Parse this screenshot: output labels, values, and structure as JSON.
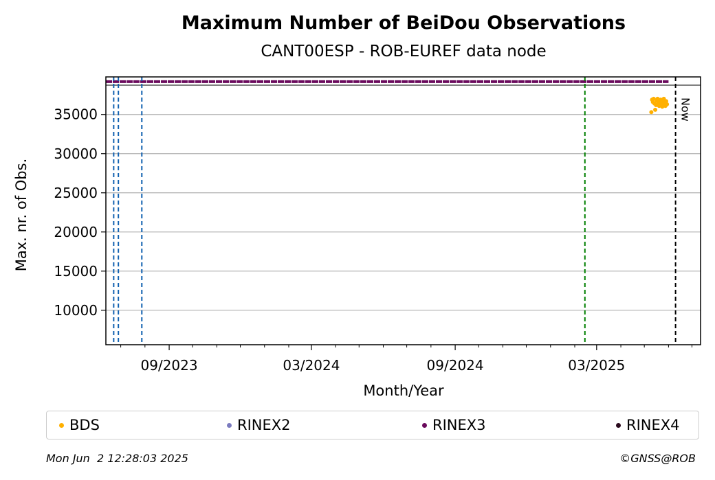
{
  "chart_data": {
    "type": "scatter",
    "title": "Maximum Number of BeiDou Observations",
    "subtitle": "CANT00ESP - ROB-EUREF data node",
    "xlabel": "Month/Year",
    "ylabel": "Max. nr. of Obs.",
    "x_range": [
      "2023-06-12",
      "2025-07-12"
    ],
    "ylim": [
      5600,
      39800
    ],
    "x_ticks": [
      {
        "date": "2023-09-01",
        "label": "09/2023"
      },
      {
        "date": "2024-03-01",
        "label": "03/2024"
      },
      {
        "date": "2024-09-01",
        "label": "09/2024"
      },
      {
        "date": "2025-03-01",
        "label": "03/2025"
      }
    ],
    "minor_ticks": [
      "2023-07-01",
      "2023-08-01",
      "2023-10-01",
      "2023-11-01",
      "2023-12-01",
      "2024-01-01",
      "2024-02-01",
      "2024-04-01",
      "2024-05-01",
      "2024-06-01",
      "2024-07-01",
      "2024-08-01",
      "2024-10-01",
      "2024-11-01",
      "2024-12-01",
      "2025-01-01",
      "2025-02-01",
      "2025-04-01",
      "2025-05-01",
      "2025-06-01",
      "2025-07-01"
    ],
    "y_ticks": [
      10000,
      15000,
      20000,
      25000,
      30000,
      35000
    ],
    "grid_y": true,
    "legend_position": "bottom",
    "series": [
      {
        "name": "BDS",
        "color": "#ffb000",
        "points": [
          {
            "x": "2025-05-10",
            "y": 35300
          },
          {
            "x": "2025-05-11",
            "y": 36900
          },
          {
            "x": "2025-05-12",
            "y": 36600
          },
          {
            "x": "2025-05-13",
            "y": 37000
          },
          {
            "x": "2025-05-14",
            "y": 36400
          },
          {
            "x": "2025-05-15",
            "y": 35600
          },
          {
            "x": "2025-05-16",
            "y": 36200
          },
          {
            "x": "2025-05-17",
            "y": 36800
          },
          {
            "x": "2025-05-18",
            "y": 37000
          },
          {
            "x": "2025-05-19",
            "y": 36500
          },
          {
            "x": "2025-05-20",
            "y": 36100
          },
          {
            "x": "2025-05-21",
            "y": 36700
          },
          {
            "x": "2025-05-22",
            "y": 36900
          },
          {
            "x": "2025-05-23",
            "y": 36300
          },
          {
            "x": "2025-05-24",
            "y": 36000
          },
          {
            "x": "2025-05-25",
            "y": 36600
          },
          {
            "x": "2025-05-26",
            "y": 37000
          },
          {
            "x": "2025-05-27",
            "y": 36400
          },
          {
            "x": "2025-05-28",
            "y": 36100
          },
          {
            "x": "2025-05-29",
            "y": 36700
          },
          {
            "x": "2025-05-30",
            "y": 36300
          }
        ]
      },
      {
        "name": "RINEX2",
        "color": "#7b7bbf",
        "points": []
      },
      {
        "name": "RINEX3",
        "color": "#6a0a5c",
        "band": {
          "x_start": "2023-06-12",
          "x_end": "2025-06-01",
          "y": 39200
        }
      },
      {
        "name": "RINEX4",
        "color": "#2a0a1e",
        "points": []
      }
    ],
    "event_lines": [
      {
        "date": "2023-06-22",
        "color": "#1060b0"
      },
      {
        "date": "2023-06-28",
        "color": "#1060b0"
      },
      {
        "date": "2023-07-28",
        "color": "#1060b0"
      },
      {
        "date": "2025-02-14",
        "color": "#008000"
      },
      {
        "date": "2025-06-10",
        "color": "#000000",
        "label": "Now"
      }
    ]
  },
  "footer": {
    "timestamp": "Mon Jun  2 12:28:03 2025",
    "copyright": "©GNSS@ROB"
  }
}
